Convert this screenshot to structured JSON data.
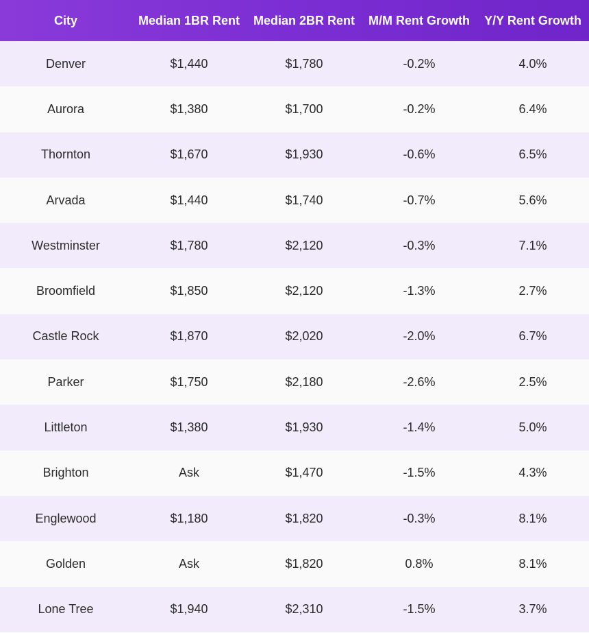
{
  "chart_data": {
    "type": "table",
    "columns": [
      "City",
      "Median 1BR Rent",
      "Median 2BR Rent",
      "M/M Rent Growth",
      "Y/Y Rent Growth"
    ],
    "rows": [
      [
        "Denver",
        "$1,440",
        "$1,780",
        "-0.2%",
        "4.0%"
      ],
      [
        "Aurora",
        "$1,380",
        "$1,700",
        "-0.2%",
        "6.4%"
      ],
      [
        "Thornton",
        "$1,670",
        "$1,930",
        "-0.6%",
        "6.5%"
      ],
      [
        "Arvada",
        "$1,440",
        "$1,740",
        "-0.7%",
        "5.6%"
      ],
      [
        "Westminster",
        "$1,780",
        "$2,120",
        "-0.3%",
        "7.1%"
      ],
      [
        "Broomfield",
        "$1,850",
        "$2,120",
        "-1.3%",
        "2.7%"
      ],
      [
        "Castle Rock",
        "$1,870",
        "$2,020",
        "-2.0%",
        "6.7%"
      ],
      [
        "Parker",
        "$1,750",
        "$2,180",
        "-2.6%",
        "2.5%"
      ],
      [
        "Littleton",
        "$1,380",
        "$1,930",
        "-1.4%",
        "5.0%"
      ],
      [
        "Brighton",
        "Ask",
        "$1,470",
        "-1.5%",
        "4.3%"
      ],
      [
        "Englewood",
        "$1,180",
        "$1,820",
        "-0.3%",
        "8.1%"
      ],
      [
        "Golden",
        "Ask",
        "$1,820",
        "0.8%",
        "8.1%"
      ],
      [
        "Lone Tree",
        "$1,940",
        "$2,310",
        "-1.5%",
        "3.7%"
      ]
    ]
  },
  "colors": {
    "header_bg": "#7b2ed3",
    "header_text": "#ffffff",
    "row_alt_bg": "#f1ebfb",
    "row_bg": "#fafafa",
    "cell_text": "#2b2b2b"
  }
}
